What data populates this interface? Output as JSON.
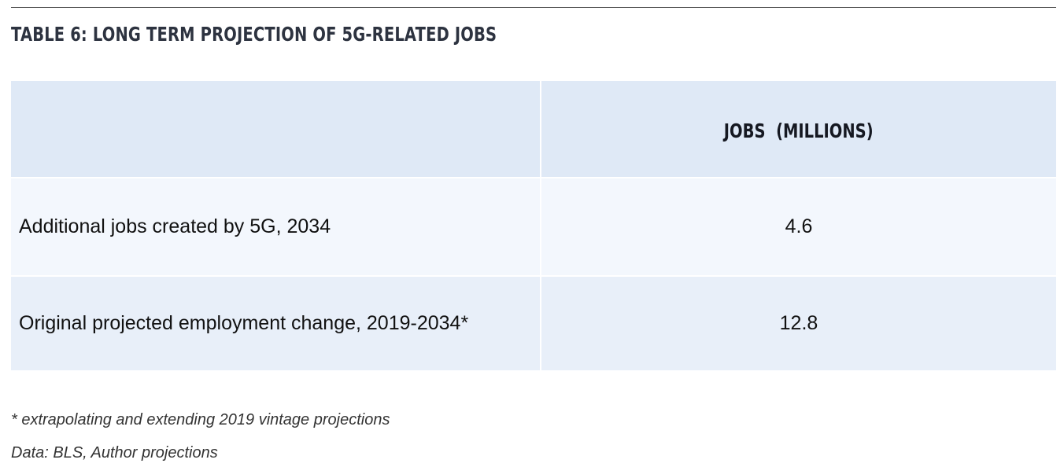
{
  "document": {
    "title": "TABLE 6: LONG TERM PROJECTION OF 5G-RELATED JOBS",
    "table": {
      "header": {
        "label_column": "",
        "value_column": "JOBS  (MILLIONS)"
      },
      "rows": [
        {
          "label": "Additional jobs created by 5G, 2034",
          "value": "4.6"
        },
        {
          "label": "Original projected employment change, 2019-2034*",
          "value": "12.8"
        }
      ]
    },
    "footnote": "* extrapolating and extending 2019 vintage projections",
    "source": "Data: BLS, Author projections"
  },
  "colors": {
    "header_bg": "#dfe9f6",
    "row1_bg": "#f3f7fd",
    "row2_bg": "#e8eff9",
    "title_text": "#2d3340",
    "rule": "#555555"
  }
}
